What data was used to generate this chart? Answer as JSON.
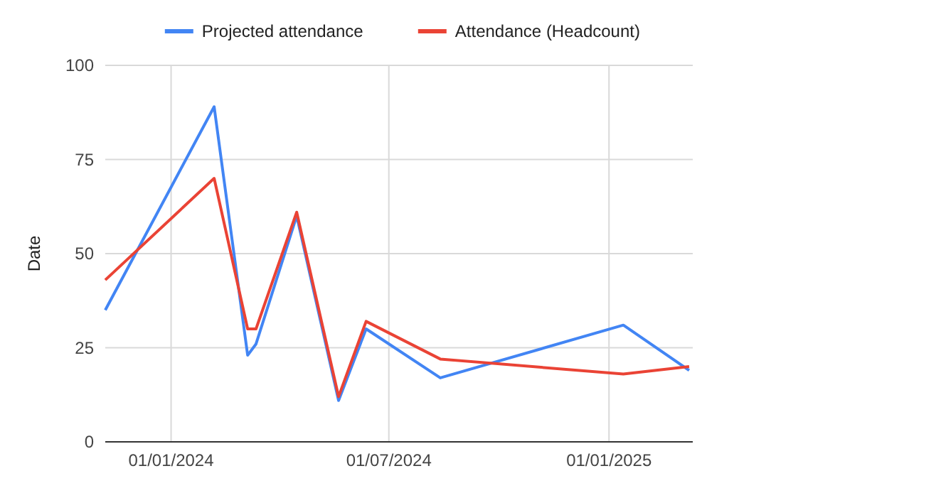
{
  "chart_data": {
    "type": "line",
    "ylabel": "Date",
    "x": [
      "2023-11-07",
      "2024-02-06",
      "2024-03-05",
      "2024-03-12",
      "2024-04-15",
      "2024-05-20",
      "2024-06-12",
      "2024-08-13",
      "2025-01-13",
      "2025-03-09"
    ],
    "series": [
      {
        "name": "Projected attendance",
        "color": "#4285f4",
        "values": [
          35,
          89,
          23,
          26,
          60,
          11,
          30,
          17,
          31,
          19
        ]
      },
      {
        "name": "Attendance (Headcount)",
        "color": "#ea4335",
        "values": [
          43,
          70,
          30,
          30,
          61,
          12,
          32,
          22,
          18,
          20
        ]
      }
    ],
    "xlim": [
      "2023-11-07",
      "2025-03-12"
    ],
    "xticks": [
      {
        "value": "2024-01-01",
        "label": "01/01/2024"
      },
      {
        "value": "2024-07-01",
        "label": "01/07/2024"
      },
      {
        "value": "2025-01-01",
        "label": "01/01/2025"
      }
    ],
    "ylim": [
      0,
      100
    ],
    "yticks": [
      0,
      25,
      50,
      75,
      100
    ],
    "grid": true,
    "legend": "top",
    "marker": "none",
    "line_style": "solid"
  }
}
